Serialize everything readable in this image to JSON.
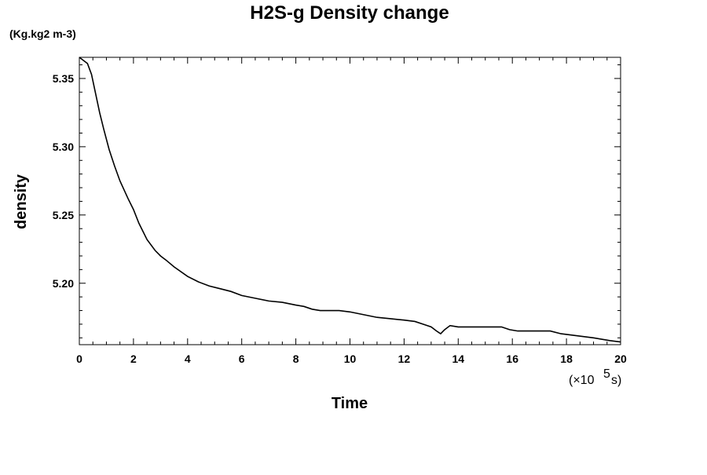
{
  "chart_data": {
    "type": "line",
    "title": "H2S-g Density change",
    "ylabel": "density",
    "xlabel": "Time",
    "y_unit": "(Kg.kg2 m-3)",
    "x_scale_label": "(×10",
    "x_scale_exponent": "5",
    "x_scale_unit": " s)",
    "xlim": [
      0,
      20
    ],
    "ylim": [
      5.155,
      5.3655
    ],
    "x_ticks": [
      0,
      2,
      4,
      6,
      8,
      10,
      12,
      14,
      16,
      18,
      20
    ],
    "y_ticks": [
      5.2,
      5.25,
      5.3,
      5.35
    ],
    "x_tick_labels": [
      "0",
      "2",
      "4",
      "6",
      "8",
      "10",
      "12",
      "14",
      "16",
      "18",
      "20"
    ],
    "y_tick_labels": [
      "5.20",
      "5.25",
      "5.30",
      "5.35"
    ],
    "grid": false,
    "line_color": "#000000",
    "series": [
      {
        "x": [
          0,
          0.3,
          0.45,
          0.6,
          0.75,
          0.9,
          1.1,
          1.3,
          1.5,
          1.8,
          2.0,
          2.2,
          2.5,
          2.8,
          3.0,
          3.2,
          3.5,
          4.0,
          4.4,
          4.8,
          5.2,
          5.6,
          6.0,
          6.5,
          7.0,
          7.5,
          8.0,
          8.3,
          8.6,
          8.9,
          9.2,
          9.6,
          10.0,
          10.5,
          11.0,
          11.5,
          12.0,
          12.4,
          12.7,
          13.0,
          13.2,
          13.35,
          13.5,
          13.7,
          14.0,
          14.5,
          15.0,
          15.3,
          15.6,
          15.9,
          16.2,
          16.6,
          17.0,
          17.4,
          17.8,
          18.2,
          18.6,
          19.0,
          19.3,
          19.6,
          20.0
        ],
        "y": [
          5.3655,
          5.361,
          5.353,
          5.339,
          5.325,
          5.313,
          5.298,
          5.286,
          5.275,
          5.262,
          5.254,
          5.244,
          5.232,
          5.224,
          5.22,
          5.217,
          5.212,
          5.205,
          5.201,
          5.198,
          5.196,
          5.194,
          5.191,
          5.189,
          5.187,
          5.186,
          5.184,
          5.183,
          5.181,
          5.18,
          5.18,
          5.18,
          5.179,
          5.177,
          5.175,
          5.174,
          5.173,
          5.172,
          5.17,
          5.168,
          5.165,
          5.163,
          5.166,
          5.169,
          5.168,
          5.168,
          5.168,
          5.168,
          5.168,
          5.166,
          5.165,
          5.165,
          5.165,
          5.165,
          5.163,
          5.162,
          5.161,
          5.16,
          5.159,
          5.158,
          5.157
        ]
      }
    ]
  }
}
